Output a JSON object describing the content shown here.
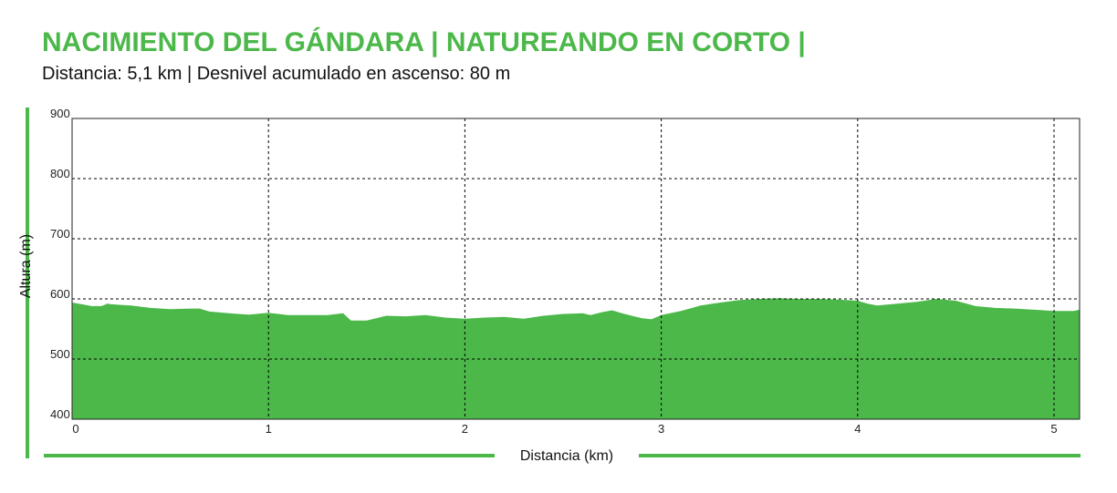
{
  "chart_data": {
    "type": "area",
    "title": "NACIMIENTO DEL GÁNDARA | NATUREANDO EN CORTO |",
    "subtitle": "Distancia: 5,1 km | Desnivel acumulado en ascenso: 80 m",
    "xlabel": "Distancia (km)",
    "ylabel": "Altura (m)",
    "xlim": [
      0,
      5.13
    ],
    "ylim": [
      400,
      900
    ],
    "xticks": [
      "0",
      "1",
      "2",
      "3",
      "4",
      "5"
    ],
    "yticks": [
      "400",
      "500",
      "600",
      "700",
      "800",
      "900"
    ],
    "grid": true,
    "series": [
      {
        "x": [
          0,
          0.05,
          0.1,
          0.15,
          0.18,
          0.2,
          0.3,
          0.4,
          0.5,
          0.6,
          0.65,
          0.7,
          0.8,
          0.9,
          1.0,
          1.1,
          1.2,
          1.3,
          1.38,
          1.42,
          1.5,
          1.6,
          1.7,
          1.8,
          1.9,
          2.0,
          2.1,
          2.2,
          2.3,
          2.4,
          2.5,
          2.6,
          2.64,
          2.7,
          2.75,
          2.8,
          2.85,
          2.9,
          2.95,
          3.0,
          3.1,
          3.2,
          3.3,
          3.4,
          3.5,
          3.6,
          3.7,
          3.8,
          3.9,
          4.0,
          4.05,
          4.1,
          4.2,
          4.3,
          4.4,
          4.5,
          4.6,
          4.7,
          4.8,
          4.9,
          5.0,
          5.1,
          5.13
        ],
        "y": [
          594,
          591,
          588,
          588,
          592,
          591,
          589,
          585,
          583,
          584,
          584,
          579,
          576,
          574,
          577,
          573,
          573,
          573,
          576,
          564,
          564,
          572,
          571,
          573,
          569,
          567,
          569,
          570,
          567,
          572,
          575,
          576,
          573,
          578,
          581,
          576,
          572,
          568,
          566,
          573,
          580,
          589,
          594,
          598,
          600,
          601,
          600,
          600,
          599,
          597,
          592,
          589,
          592,
          595,
          600,
          597,
          588,
          585,
          584,
          582,
          580,
          580,
          582
        ]
      }
    ],
    "colors": {
      "fill": "#4cb84a",
      "accent": "#4cb84a",
      "grid": "#000000"
    }
  }
}
